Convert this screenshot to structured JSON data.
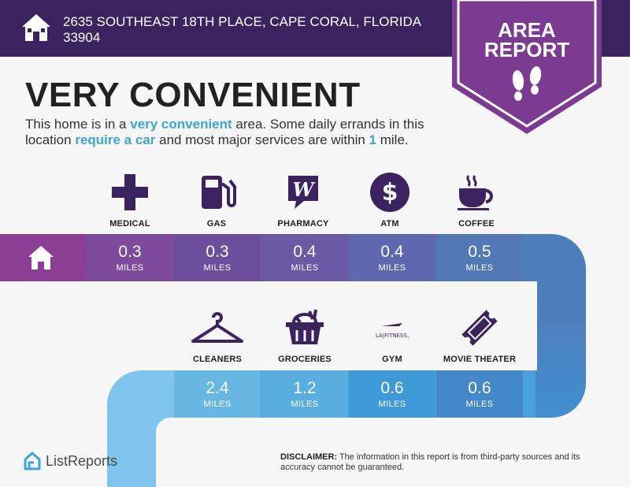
{
  "header": {
    "address": "2635 SOUTHEAST 18TH PLACE, CAPE CORAL, FLORIDA 33904",
    "badge_line1": "AREA",
    "badge_line2": "REPORT",
    "color": "#3b2360",
    "badge_color": "#7a3b91"
  },
  "headline": "VERY CONVENIENT",
  "description": {
    "part1": "This home is in a ",
    "hl1": "very convenient",
    "part2": " area. Some daily errands in this location ",
    "hl2": "require a car",
    "part3": " and most major services are within ",
    "hl3": "1",
    "part4": " mile."
  },
  "amenities_row1": [
    {
      "label": "MEDICAL",
      "value": "0.3",
      "unit": "MILES",
      "icon": "medical-cross-icon",
      "color": "#7e4a9c"
    },
    {
      "label": "GAS",
      "value": "0.3",
      "unit": "MILES",
      "icon": "gas-pump-icon",
      "color": "#6d4e9c"
    },
    {
      "label": "PHARMACY",
      "value": "0.4",
      "unit": "MILES",
      "icon": "pharmacy-icon",
      "color": "#6a5aa6"
    },
    {
      "label": "ATM",
      "value": "0.4",
      "unit": "MILES",
      "icon": "dollar-icon",
      "color": "#5e68ae"
    },
    {
      "label": "COFFEE",
      "value": "0.5",
      "unit": "MILES",
      "icon": "coffee-cup-icon",
      "color": "#5378b6"
    }
  ],
  "amenities_row2": [
    {
      "label": "CLEANERS",
      "value": "2.4",
      "unit": "MILES",
      "icon": "hanger-icon",
      "color": "#66b7e2"
    },
    {
      "label": "GROCERIES",
      "value": "1.2",
      "unit": "MILES",
      "icon": "grocery-basket-icon",
      "color": "#58aedf"
    },
    {
      "label": "GYM",
      "value": "0.6",
      "unit": "MILES",
      "icon": "la-fitness-logo",
      "color": "#3e9ad6",
      "logo_text": "LA|FITNESS."
    },
    {
      "label": "MOVIE THEATER",
      "value": "0.6",
      "unit": "MILES",
      "icon": "movie-ticket-icon",
      "color": "#4388c8"
    }
  ],
  "footer": {
    "logo_text": "ListReports",
    "disclaimer_label": "DISCLAIMER:",
    "disclaimer_text": " The information in this report is from third-party sources and its accuracy cannot be guaranteed."
  }
}
